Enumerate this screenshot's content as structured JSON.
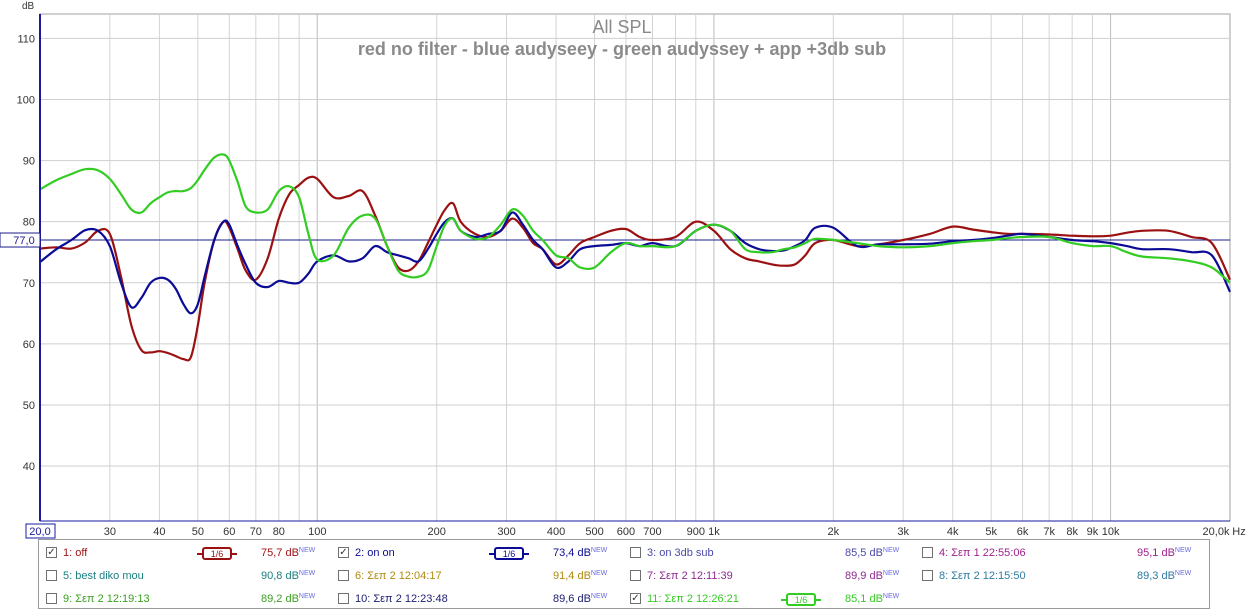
{
  "chart_data": {
    "type": "line",
    "title": "All SPL",
    "subtitle": "red no filter - blue audyseey - green audyssey + app +3db sub",
    "ylabel": "dB",
    "xunit": "Hz",
    "xscale": "log",
    "xlim": [
      20,
      20000
    ],
    "ylim": [
      31,
      114
    ],
    "grid": true,
    "y_ticks": [
      110,
      100,
      90,
      80,
      70,
      60,
      50,
      40
    ],
    "y_tick_labels": [
      "110",
      "100",
      "90",
      "80",
      "70",
      "60",
      "50",
      "40"
    ],
    "x_ticks": [
      30,
      40,
      50,
      60,
      70,
      80,
      100,
      200,
      300,
      400,
      500,
      600,
      700,
      900,
      1000,
      2000,
      3000,
      4000,
      5000,
      6000,
      7000,
      8000,
      9000,
      10000
    ],
    "x_tick_labels": [
      "30",
      "40",
      "50",
      "60",
      "70",
      "80",
      "100",
      "200",
      "300",
      "400",
      "500",
      "600",
      "700",
      "900",
      "1k",
      "2k",
      "3k",
      "4k",
      "5k",
      "6k",
      "7k",
      "8k",
      "9k",
      "10k"
    ],
    "x_min_label": "20,0",
    "x_max_label": "20,0k",
    "reference_line": {
      "value": 77.0,
      "label": "77,0",
      "color": "#1c1c8c"
    },
    "series": [
      {
        "name": "1: off",
        "color": "#9b1010",
        "x": [
          20,
          22,
          24,
          26,
          28,
          30,
          32,
          34,
          36,
          38,
          40,
          42,
          44,
          46,
          48,
          50,
          52,
          55,
          58,
          60,
          63,
          66,
          70,
          75,
          80,
          85,
          90,
          95,
          100,
          110,
          120,
          130,
          140,
          150,
          160,
          170,
          180,
          190,
          200,
          210,
          220,
          230,
          250,
          270,
          290,
          310,
          330,
          350,
          370,
          400,
          430,
          460,
          500,
          550,
          600,
          650,
          700,
          800,
          900,
          1000,
          1100,
          1200,
          1300,
          1400,
          1500,
          1600,
          1700,
          1800,
          2000,
          2300,
          2600,
          3000,
          3500,
          4000,
          4500,
          5000,
          5500,
          6000,
          7000,
          8000,
          9000,
          10000,
          11000,
          12000,
          14000,
          16000,
          18000,
          20000
        ],
        "y": [
          75.6,
          75.8,
          75.6,
          76.6,
          78.5,
          78.0,
          71.0,
          63.0,
          59.0,
          58.6,
          58.8,
          58.5,
          58.0,
          57.5,
          57.8,
          63.0,
          70.0,
          77.0,
          80.0,
          79.0,
          75.5,
          72.0,
          70.5,
          74.0,
          80.5,
          84.5,
          86.0,
          87.2,
          87.0,
          84.0,
          84.2,
          85.0,
          81.0,
          76.0,
          72.5,
          72.0,
          73.5,
          76.5,
          79.5,
          82.0,
          83.0,
          80.0,
          78.0,
          77.5,
          78.5,
          80.5,
          79.0,
          76.5,
          75.5,
          73.0,
          74.5,
          76.5,
          77.5,
          78.5,
          78.8,
          77.5,
          77.0,
          77.5,
          80.0,
          78.5,
          75.5,
          74.0,
          73.5,
          73.0,
          72.8,
          73.0,
          74.5,
          76.5,
          77.0,
          76.0,
          76.3,
          77.0,
          78.0,
          79.2,
          78.7,
          78.3,
          78.0,
          78.0,
          77.9,
          77.7,
          77.6,
          77.7,
          78.2,
          78.5,
          78.5,
          77.5,
          76.5,
          70.5
        ]
      },
      {
        "name": "2: on on",
        "color": "#0b0b96",
        "x": [
          20,
          22,
          24,
          26,
          28,
          30,
          32,
          34,
          36,
          38,
          40,
          42,
          44,
          46,
          48,
          50,
          52,
          55,
          58,
          60,
          63,
          66,
          70,
          75,
          80,
          85,
          90,
          95,
          100,
          110,
          120,
          130,
          140,
          150,
          160,
          170,
          180,
          190,
          200,
          210,
          220,
          230,
          250,
          270,
          290,
          310,
          330,
          350,
          370,
          400,
          430,
          460,
          500,
          550,
          600,
          650,
          700,
          800,
          900,
          1000,
          1100,
          1200,
          1300,
          1400,
          1500,
          1600,
          1700,
          1800,
          2000,
          2300,
          2600,
          3000,
          3500,
          4000,
          4500,
          5000,
          5500,
          6000,
          7000,
          8000,
          9000,
          10000,
          11000,
          12000,
          14000,
          16000,
          18000,
          20000
        ],
        "y": [
          73.4,
          75.5,
          77.0,
          78.6,
          78.5,
          76.0,
          70.0,
          66.0,
          67.5,
          70.0,
          70.8,
          70.5,
          69.0,
          66.5,
          65.0,
          66.5,
          71.0,
          77.0,
          80.0,
          79.5,
          76.0,
          73.0,
          70.0,
          69.3,
          70.3,
          70.0,
          70.0,
          71.5,
          73.5,
          74.5,
          73.5,
          74.0,
          76.0,
          75.0,
          74.5,
          74.0,
          73.5,
          75.5,
          78.0,
          80.0,
          80.5,
          78.5,
          77.5,
          78.0,
          78.5,
          81.5,
          79.5,
          77.0,
          75.5,
          72.5,
          73.5,
          75.5,
          76.0,
          76.2,
          76.5,
          76.0,
          76.5,
          76.0,
          78.5,
          79.5,
          78.5,
          76.5,
          75.5,
          75.2,
          75.3,
          76.0,
          77.0,
          79.0,
          79.0,
          76.0,
          76.3,
          76.3,
          76.4,
          76.8,
          77.0,
          77.3,
          77.7,
          78.0,
          77.5,
          77.0,
          76.8,
          76.5,
          76.0,
          75.5,
          75.5,
          75.0,
          74.5,
          68.5
        ]
      },
      {
        "name": "11: Σεπ 2 12:26:21",
        "color": "#33cc22",
        "x": [
          20,
          22,
          24,
          26,
          28,
          30,
          32,
          34,
          36,
          38,
          40,
          42,
          44,
          46,
          48,
          50,
          52,
          55,
          58,
          60,
          63,
          66,
          70,
          75,
          80,
          85,
          90,
          95,
          100,
          110,
          120,
          130,
          140,
          150,
          160,
          170,
          180,
          190,
          200,
          210,
          220,
          230,
          250,
          270,
          290,
          310,
          330,
          350,
          370,
          400,
          430,
          460,
          500,
          550,
          600,
          650,
          700,
          800,
          900,
          1000,
          1100,
          1200,
          1300,
          1400,
          1500,
          1600,
          1700,
          1800,
          2000,
          2300,
          2600,
          3000,
          3500,
          4000,
          4500,
          5000,
          5500,
          6000,
          7000,
          8000,
          9000,
          10000,
          11000,
          12000,
          14000,
          16000,
          18000,
          20000
        ],
        "y": [
          85.3,
          86.8,
          87.8,
          88.6,
          88.4,
          87.0,
          84.5,
          82.0,
          81.5,
          83.0,
          84.0,
          84.8,
          85.0,
          85.0,
          85.5,
          86.8,
          88.5,
          90.5,
          91.0,
          90.0,
          86.5,
          82.5,
          81.5,
          82.0,
          85.0,
          85.8,
          84.0,
          78.0,
          73.8,
          74.5,
          79.0,
          81.0,
          80.5,
          76.0,
          72.0,
          71.0,
          71.0,
          72.0,
          76.0,
          79.5,
          80.5,
          78.5,
          77.2,
          77.5,
          79.5,
          82.0,
          81.0,
          78.5,
          77.0,
          74.5,
          74.0,
          72.5,
          72.5,
          75.0,
          76.5,
          76.0,
          76.0,
          76.0,
          78.5,
          79.5,
          78.5,
          75.5,
          75.0,
          75.0,
          75.5,
          75.8,
          76.5,
          77.2,
          77.0,
          76.5,
          76.0,
          75.8,
          76.0,
          76.5,
          76.8,
          77.0,
          77.3,
          77.5,
          77.5,
          76.5,
          76.0,
          76.0,
          75.0,
          74.3,
          74.0,
          73.5,
          72.5,
          70.0
        ]
      }
    ]
  },
  "legend": {
    "items": [
      {
        "name": "1: off",
        "checked": true,
        "color": "#9b1010",
        "smoothing": "1/6",
        "value": "75,7 dB",
        "tag": "NEW"
      },
      {
        "name": "2: on on",
        "checked": true,
        "color": "#0b0b96",
        "smoothing": "1/6",
        "value": "73,4 dB",
        "tag": "NEW"
      },
      {
        "name": "3: on 3db sub",
        "checked": false,
        "color": "#4a4aa8",
        "smoothing": "",
        "value": "85,5 dB",
        "tag": "NEW"
      },
      {
        "name": "4: Σεπ 1 22:55:06",
        "checked": false,
        "color": "#a0208c",
        "smoothing": "",
        "value": "95,1 dB",
        "tag": "NEW"
      },
      {
        "name": "5: best diko mou",
        "checked": false,
        "color": "#1c8080",
        "smoothing": "",
        "value": "90,8 dB",
        "tag": "NEW"
      },
      {
        "name": "6: Σεπ 2 12:04:17",
        "checked": false,
        "color": "#b08a10",
        "smoothing": "",
        "value": "91,4 dB",
        "tag": "NEW"
      },
      {
        "name": "7: Σεπ 2 12:11:39",
        "checked": false,
        "color": "#8e2a8e",
        "smoothing": "",
        "value": "89,9 dB",
        "tag": "NEW"
      },
      {
        "name": "8: Σεπ 2 12:15:50",
        "checked": false,
        "color": "#2e7ba0",
        "smoothing": "",
        "value": "89,3 dB",
        "tag": "NEW"
      },
      {
        "name": "9: Σεπ 2 12:19:13",
        "checked": false,
        "color": "#3aa020",
        "smoothing": "",
        "value": "89,2 dB",
        "tag": "NEW"
      },
      {
        "name": "10: Σεπ 2 12:23:48",
        "checked": false,
        "color": "#1c1c70",
        "smoothing": "",
        "value": "89,6 dB",
        "tag": "NEW"
      },
      {
        "name": "11: Σεπ 2 12:26:21",
        "checked": true,
        "color": "#33cc22",
        "smoothing": "1/6",
        "value": "85,1 dB",
        "tag": "NEW"
      }
    ]
  }
}
